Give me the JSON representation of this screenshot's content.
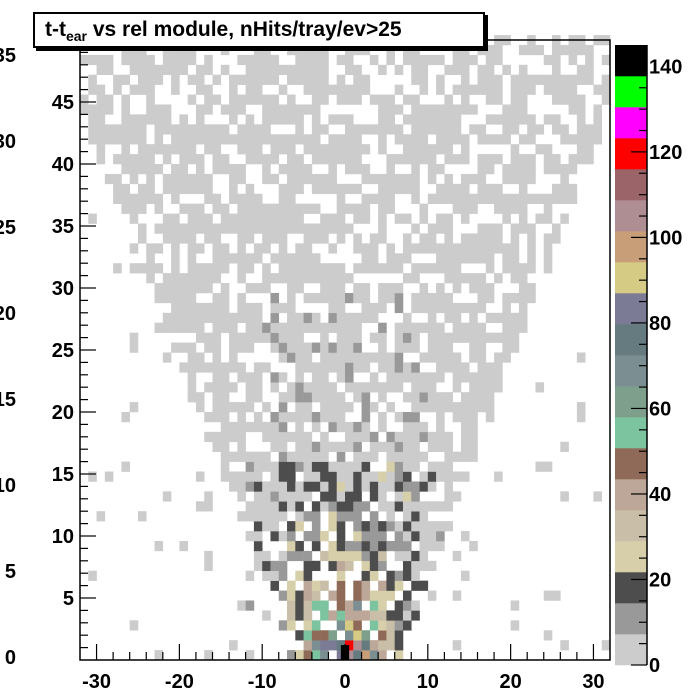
{
  "chart_data": {
    "type": "heatmap",
    "title": {
      "prefix": "t-t",
      "subscript": "ear",
      "suffix": " vs rel module, nHits/tray/ev>25"
    },
    "xlabel": "",
    "ylabel": "",
    "xlim": [
      -32,
      32
    ],
    "ylim": [
      0,
      50
    ],
    "x_ticks": [
      "-30",
      "-20",
      "-10",
      "0",
      "10",
      "20",
      "30"
    ],
    "y_ticks": [
      "5",
      "10",
      "15",
      "20",
      "25",
      "30",
      "35",
      "40",
      "45"
    ],
    "left_axis_ticks": [
      "0",
      "5",
      "10",
      "15",
      "20",
      "25",
      "30",
      "35"
    ],
    "zlim": [
      0,
      145
    ],
    "z_ticks": [
      "0",
      "20",
      "40",
      "60",
      "80",
      "100",
      "120",
      "140"
    ],
    "grid": false,
    "palette": [
      "#cccccc",
      "#999999",
      "#4d4d4d",
      "#d6cfa9",
      "#c9bea8",
      "#bda798",
      "#8f6a58",
      "#7cc39f",
      "#7e9f8c",
      "#7b8f92",
      "#657b80",
      "#7b7b96",
      "#d6cb85",
      "#c79e78",
      "#ae8d93",
      "#9a6468",
      "#ff0000",
      "#ff00ff",
      "#00ff00",
      "#000000"
    ],
    "bin_width_x": 1,
    "bin_width_y": 0.8,
    "density_model": {
      "peak_count": 140,
      "description_cells": "counts per (module, time) bin, concentrated near module 0 at small time, spreading with time"
    }
  }
}
